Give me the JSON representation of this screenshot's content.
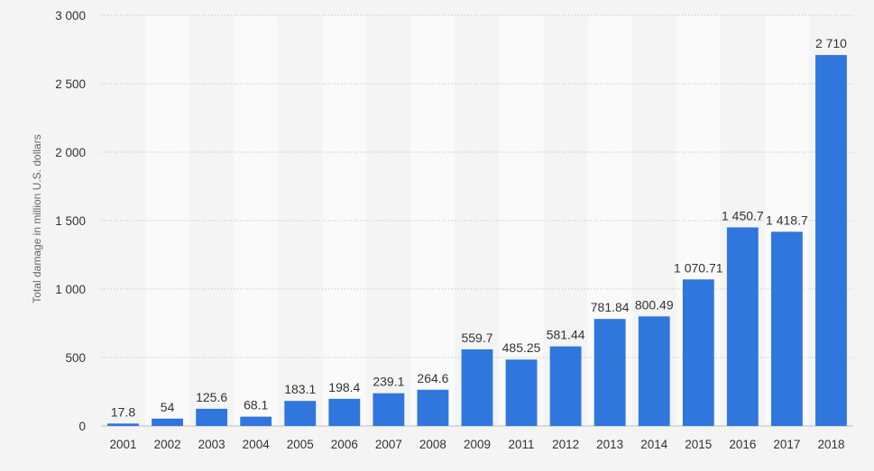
{
  "chart_data": {
    "type": "bar",
    "title": "",
    "xlabel": "",
    "ylabel": "Total damage in million U.S. dollars",
    "categories": [
      "2001",
      "2002",
      "2003",
      "2004",
      "2005",
      "2006",
      "2007",
      "2008",
      "2009",
      "2011",
      "2012",
      "2013",
      "2014",
      "2015",
      "2016",
      "2017",
      "2018"
    ],
    "values": [
      17.8,
      54,
      125.6,
      68.1,
      183.1,
      198.4,
      239.1,
      264.6,
      559.7,
      485.25,
      581.44,
      781.84,
      800.49,
      1070.71,
      1450.7,
      1418.7,
      2710
    ],
    "value_labels": [
      "17.8",
      "54",
      "125.6",
      "68.1",
      "183.1",
      "198.4",
      "239.1",
      "264.6",
      "559.7",
      "485.25",
      "581.44",
      "781.84",
      "800.49",
      "1 070.71",
      "1 450.7",
      "1 418.7",
      "2 710"
    ],
    "yticks": [
      0,
      500,
      1000,
      1500,
      2000,
      2500,
      3000
    ],
    "ytick_labels": [
      "0",
      "500",
      "1 000",
      "1 500",
      "2 000",
      "2 500",
      "3 000"
    ],
    "ylim": [
      0,
      3000
    ],
    "grid": true,
    "legend": "none",
    "colors": {
      "bar": "#2f77dd",
      "grid": "#c8c8c8",
      "alt_band": "#fafafa",
      "background": "#f4f4f4"
    }
  }
}
